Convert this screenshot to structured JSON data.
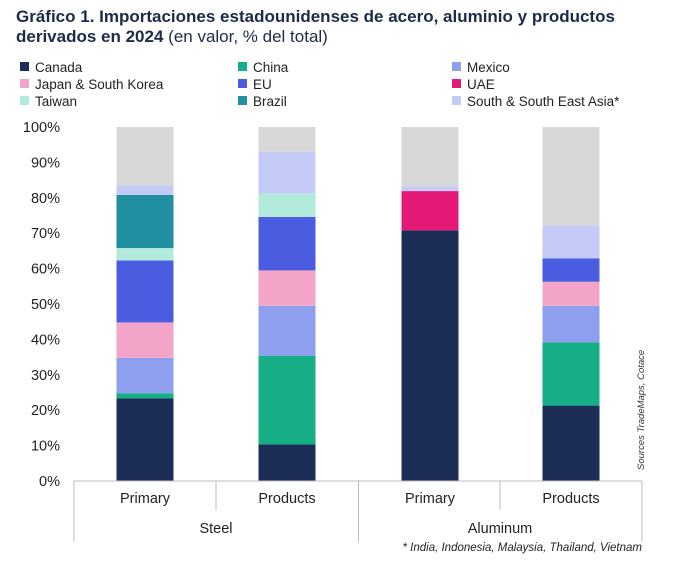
{
  "title": {
    "bold": "Gráfico 1. Importaciones estadounidenses de acero, aluminio y productos derivados en 2024",
    "normal": "(en valor, % del total)"
  },
  "source": "Sources TradeMaps, Cotace",
  "footnote": "* India, Indonesia, Malaysia, Thailand, Vietnam",
  "colors": {
    "Canada": "#1c2e58",
    "China": "#16ae86",
    "Mexico": "#8f9ff0",
    "Japan & South Korea": "#f4a4c8",
    "EU": "#4a5de0",
    "UAE": "#e51a76",
    "Taiwan": "#b2eadc",
    "Brazil": "#208f9f",
    "South & South East Asia*": "#c4cbf6",
    "Other": "#d8d8d8"
  },
  "chart_data": {
    "type": "bar",
    "stacked": true,
    "categories": [
      "Primary",
      "Products",
      "Primary",
      "Products"
    ],
    "groups": [
      {
        "name": "Steel",
        "categories": [
          "Primary",
          "Products"
        ]
      },
      {
        "name": "Aluminum",
        "categories": [
          "Primary",
          "Products"
        ]
      }
    ],
    "ylim": [
      0,
      100
    ],
    "yticks": [
      "0%",
      "10%",
      "20%",
      "30%",
      "40%",
      "50%",
      "60%",
      "70%",
      "80%",
      "90%",
      "100%"
    ],
    "legend": [
      "Canada",
      "China",
      "Mexico",
      "Japan & South Korea",
      "EU",
      "UAE",
      "Taiwan",
      "Brazil",
      "South & South East Asia*"
    ],
    "series": [
      {
        "name": "Canada",
        "values": [
          23.3,
          10.3,
          70.8,
          21.3
        ]
      },
      {
        "name": "China",
        "values": [
          1.5,
          25.1,
          0,
          17.9
        ]
      },
      {
        "name": "Mexico",
        "values": [
          10.0,
          14.1,
          0,
          10.3
        ]
      },
      {
        "name": "Japan & South Korea",
        "values": [
          10.0,
          10.0,
          0,
          6.8
        ]
      },
      {
        "name": "EU",
        "values": [
          17.5,
          15.1,
          0,
          6.6
        ]
      },
      {
        "name": "UAE",
        "values": [
          0,
          0,
          11.1,
          0
        ]
      },
      {
        "name": "Taiwan",
        "values": [
          3.5,
          6.6,
          0,
          0
        ]
      },
      {
        "name": "Brazil",
        "values": [
          15.0,
          0,
          0,
          0
        ]
      },
      {
        "name": "South & South East Asia*",
        "values": [
          2.7,
          11.8,
          1.3,
          9.3
        ]
      },
      {
        "values": [
          16.5,
          7.0,
          16.8,
          27.8
        ]
      }
    ]
  }
}
